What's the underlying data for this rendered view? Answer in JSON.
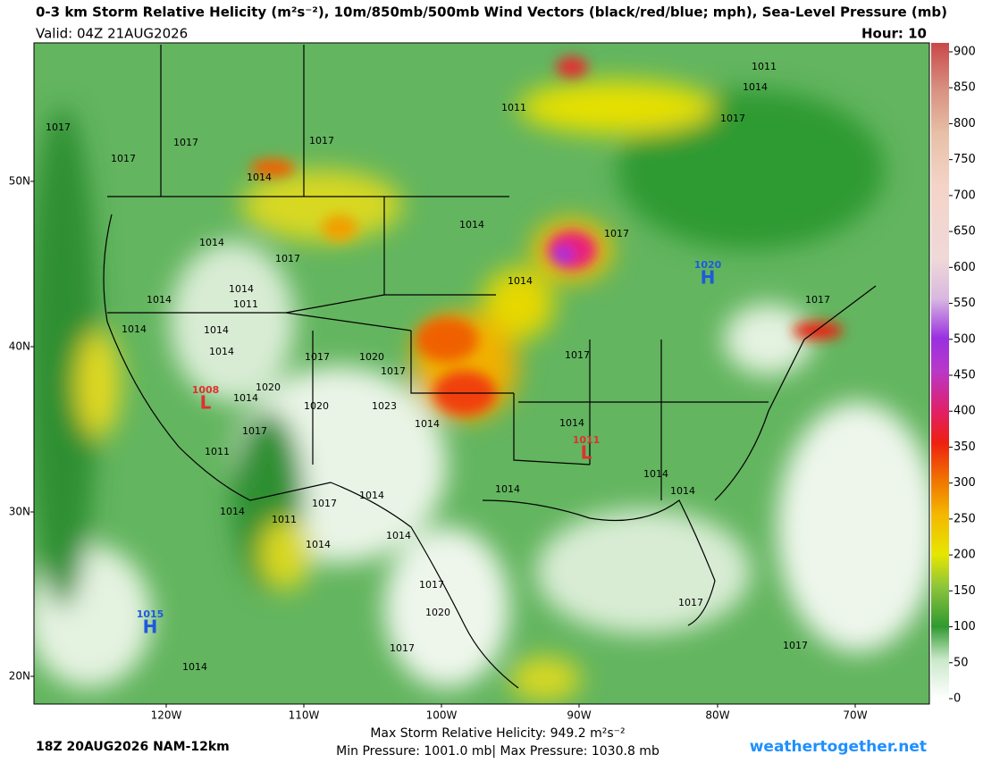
{
  "header": {
    "title": "0-3 km Storm Relative Helicity (m²s⁻²), 10m/850mb/500mb Wind Vectors (black/red/blue; mph), Sea-Level Pressure (mb)",
    "valid": "Valid: 04Z 21AUG2026",
    "hour": "Hour: 10"
  },
  "colorbar": {
    "ticks": [
      0,
      50,
      100,
      150,
      200,
      250,
      300,
      350,
      400,
      450,
      500,
      550,
      600,
      650,
      700,
      750,
      800,
      850,
      900
    ]
  },
  "latitude_labels": [
    "50N",
    "40N",
    "30N",
    "20N"
  ],
  "longitude_labels": [
    "120W",
    "110W",
    "100W",
    "90W",
    "80W",
    "70W"
  ],
  "pressure_labels": [
    "1011",
    "1014",
    "1011",
    "1017",
    "1017",
    "1017",
    "1017",
    "1017",
    "1014",
    "1014",
    "1017",
    "1014",
    "1017",
    "1014",
    "1014",
    "1011",
    "1014",
    "1014",
    "1014",
    "1017",
    "1014",
    "1017",
    "1020",
    "1017",
    "1017",
    "1020",
    "1014",
    "1020",
    "1023",
    "1014",
    "1014",
    "1017",
    "1011",
    "1014",
    "1014",
    "1014",
    "1014",
    "1017",
    "1014",
    "1011",
    "1014",
    "1014",
    "1017",
    "1020",
    "1017",
    "1017",
    "1017",
    "1014"
  ],
  "highs_lows": [
    {
      "symbol": "H",
      "pressure": "1020"
    },
    {
      "symbol": "H",
      "pressure": "1015"
    },
    {
      "symbol": "L",
      "pressure": "1008"
    },
    {
      "symbol": "L",
      "pressure": "1011"
    }
  ],
  "footer": {
    "run": "18Z 20AUG2026 NAM-12km",
    "max_helicity": "Max Storm Relative Helicity: 949.2 m²s⁻²",
    "pressure_range": "Min Pressure: 1001.0 mb| Max Pressure: 1030.8 mb",
    "site": "weathertogether.net"
  }
}
